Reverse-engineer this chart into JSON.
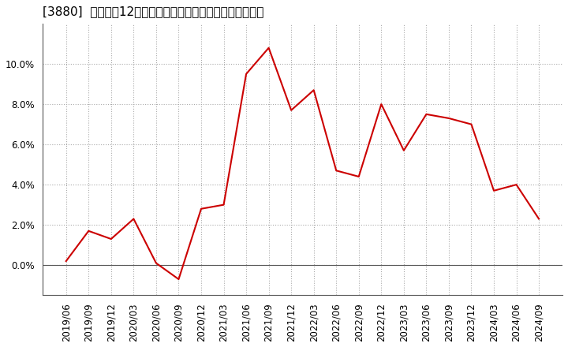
{
  "title": "[3880]  売上高の12か月移動合計の対前年同期増減率の推移",
  "line_color": "#cc0000",
  "background_color": "#ffffff",
  "grid_color": "#aaaaaa",
  "dates": [
    "2019/06",
    "2019/09",
    "2019/12",
    "2020/03",
    "2020/06",
    "2020/09",
    "2020/12",
    "2021/03",
    "2021/06",
    "2021/09",
    "2021/12",
    "2022/03",
    "2022/06",
    "2022/09",
    "2022/12",
    "2023/03",
    "2023/06",
    "2023/09",
    "2023/12",
    "2024/03",
    "2024/06",
    "2024/09"
  ],
  "values": [
    0.002,
    0.017,
    0.013,
    0.023,
    0.001,
    -0.007,
    0.028,
    0.03,
    0.095,
    0.108,
    0.077,
    0.087,
    0.047,
    0.044,
    0.08,
    0.057,
    0.075,
    0.073,
    0.07,
    0.037,
    0.04,
    0.023
  ],
  "ylim": [
    -0.015,
    0.12
  ],
  "yticks": [
    0.0,
    0.02,
    0.04,
    0.06,
    0.08,
    0.1
  ],
  "title_fontsize": 11,
  "tick_fontsize": 8.5,
  "spine_color": "#555555"
}
